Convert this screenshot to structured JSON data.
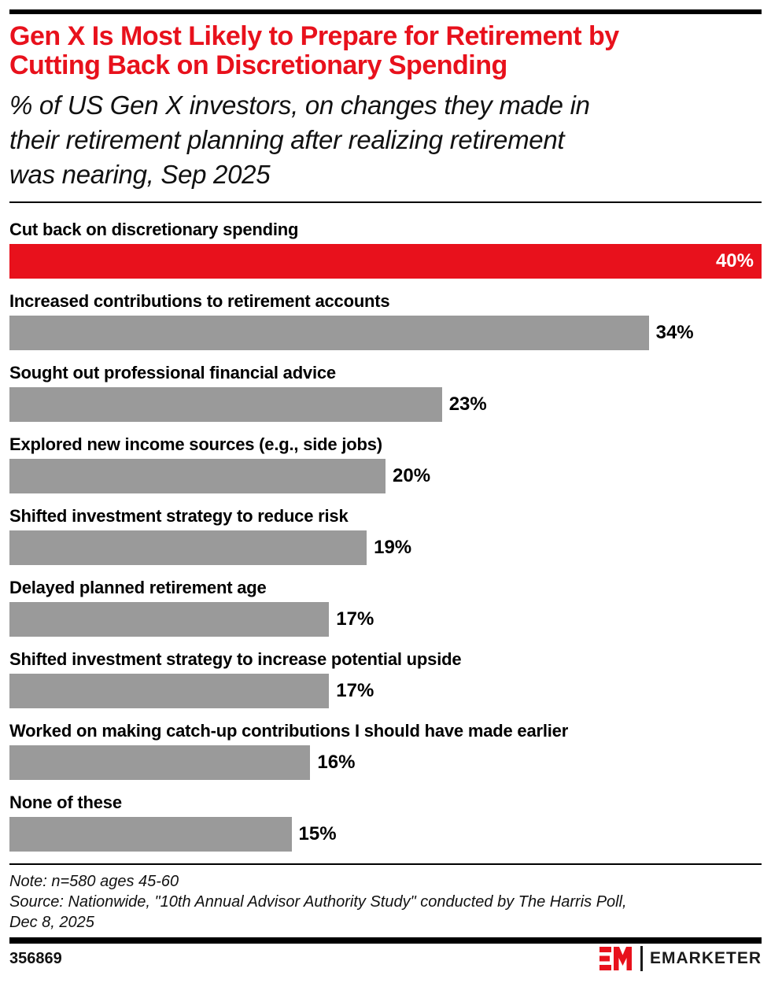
{
  "header": {
    "title": "Gen X Is Most Likely to Prepare for Retirement by\nCutting Back on Discretionary Spending",
    "subtitle": "% of US Gen X investors, on changes they made in\ntheir retirement planning after realizing retirement\nwas nearing, Sep 2025"
  },
  "chart_data": {
    "type": "bar",
    "orientation": "horizontal",
    "title": "Gen X Is Most Likely to Prepare for Retirement by Cutting Back on Discretionary Spending",
    "subtitle": "% of US Gen X investors, on changes they made in their retirement planning after realizing retirement was nearing, Sep 2025",
    "categories": [
      "Cut back on discretionary spending",
      "Increased contributions to retirement accounts",
      "Sought out professional financial advice",
      "Explored new income sources (e.g., side jobs)",
      "Shifted investment strategy to reduce risk",
      "Delayed planned retirement age",
      "Shifted investment strategy to increase potential upside",
      "Worked on making catch-up contributions I should have made earlier",
      "None of these"
    ],
    "values": [
      40,
      34,
      23,
      20,
      19,
      17,
      17,
      16,
      15
    ],
    "value_labels": [
      "40%",
      "34%",
      "23%",
      "20%",
      "19%",
      "17%",
      "17%",
      "16%",
      "15%"
    ],
    "unit": "%",
    "xlim": [
      0,
      40
    ],
    "grid": false,
    "legend": false,
    "highlight_index": 0,
    "value_label_position": "outside right; inside right for highlighted bar",
    "colors": {
      "highlight": "#e8111c",
      "bar": "#9a9a9a",
      "value_inside": "#ffffff",
      "value_outside": "#000000"
    }
  },
  "footer": {
    "note": "Note: n=580 ages 45-60",
    "source": "Source: Nationwide, \"10th Annual Advisor Authority Study\" conducted by The Harris Poll,\nDec 8, 2025",
    "chart_id": "356869",
    "brand_wordmark": "EMARKETER"
  }
}
